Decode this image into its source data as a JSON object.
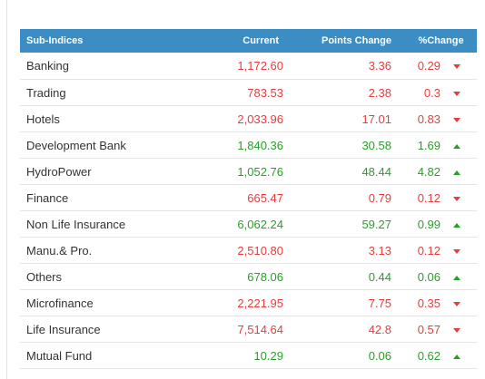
{
  "table": {
    "headers": {
      "name": "Sub-Indices",
      "current": "Current",
      "points_change": "Points Change",
      "percent_change": "%Change"
    },
    "rows": [
      {
        "name": "Banking",
        "current": "1,172.60",
        "points": "3.36",
        "percent": "0.29",
        "direction": "down"
      },
      {
        "name": "Trading",
        "current": "783.53",
        "points": "2.38",
        "percent": "0.3",
        "direction": "down"
      },
      {
        "name": "Hotels",
        "current": "2,033.96",
        "points": "17.01",
        "percent": "0.83",
        "direction": "down"
      },
      {
        "name": "Development Bank",
        "current": "1,840.36",
        "points": "30.58",
        "percent": "1.69",
        "direction": "up"
      },
      {
        "name": "HydroPower",
        "current": "1,052.76",
        "points": "48.44",
        "percent": "4.82",
        "direction": "up"
      },
      {
        "name": "Finance",
        "current": "665.47",
        "points": "0.79",
        "percent": "0.12",
        "direction": "down"
      },
      {
        "name": "Non Life Insurance",
        "current": "6,062.24",
        "points": "59.27",
        "percent": "0.99",
        "direction": "up"
      },
      {
        "name": "Manu.& Pro.",
        "current": "2,510.80",
        "points": "3.13",
        "percent": "0.12",
        "direction": "down"
      },
      {
        "name": "Others",
        "current": "678.06",
        "points": "0.44",
        "percent": "0.06",
        "direction": "up"
      },
      {
        "name": "Microfinance",
        "current": "2,221.95",
        "points": "7.75",
        "percent": "0.35",
        "direction": "down"
      },
      {
        "name": "Life Insurance",
        "current": "7,514.64",
        "points": "42.8",
        "percent": "0.57",
        "direction": "down"
      },
      {
        "name": "Mutual Fund",
        "current": "10.29",
        "points": "0.06",
        "percent": "0.62",
        "direction": "up"
      }
    ]
  },
  "colors": {
    "header_bg": "#3b8dc4",
    "up": "#2a9e2a",
    "down": "#e83d3d",
    "row_border": "#e4e4e4"
  }
}
